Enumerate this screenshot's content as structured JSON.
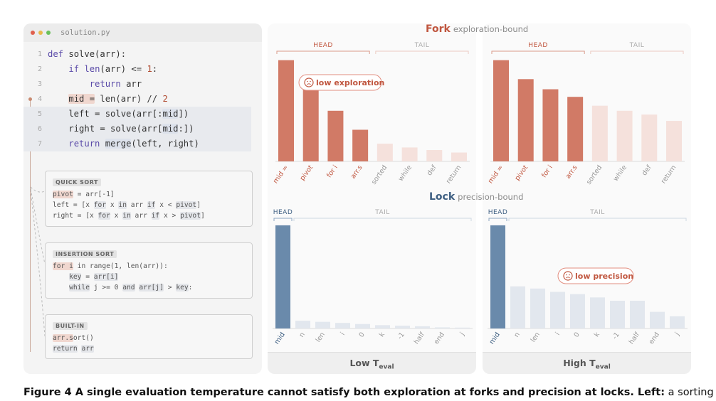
{
  "editor": {
    "filename": "solution.py",
    "dots": [
      "#e0604e",
      "#e8b94a",
      "#6ac05a"
    ],
    "lines": [
      {
        "n": "1",
        "text": "def solve(arr):"
      },
      {
        "n": "2",
        "text": "    if len(arr) <= 1:"
      },
      {
        "n": "3",
        "text": "        return arr"
      },
      {
        "n": "4",
        "text": "    mid = len(arr) // 2"
      },
      {
        "n": "5",
        "text": "    left = solve(arr[:mid])"
      },
      {
        "n": "6",
        "text": "    right = solve(arr[mid:])"
      },
      {
        "n": "7",
        "text": "    return merge(left, right)"
      }
    ]
  },
  "strategies": [
    {
      "title": "QUICK SORT",
      "lines": [
        "pivot = arr[-1]",
        "left = [x for x in arr if x < pivot]",
        "right = [x for x in arr if x > pivot]"
      ]
    },
    {
      "title": "INSERTION SORT",
      "lines": [
        "for i in range(1, len(arr)):",
        "    key = arr[i]",
        "    while j >= 0 and arr[j] > key:"
      ]
    },
    {
      "title": "BUILT-IN",
      "lines": [
        "arr.sort()",
        "return arr"
      ]
    }
  ],
  "fork": {
    "title": "Fork",
    "subtitle": "exploration-bound",
    "color": "#c0563f"
  },
  "lock": {
    "title": "Lock",
    "subtitle": "precision-bound",
    "color": "#3e5f82"
  },
  "labels": {
    "head": "HEAD",
    "tail": "TAIL"
  },
  "annotations": {
    "low_exploration": "low exploration",
    "low_precision": "low precision"
  },
  "footers": {
    "low": "Low T",
    "high": "High T",
    "sub": "eval"
  },
  "colors": {
    "fork_head": "#d17a66",
    "fork_tail": "#f5e1dc",
    "lock_head": "#6a8aab",
    "lock_tail": "#e2e7ee"
  },
  "chart_data": [
    {
      "type": "bar",
      "group": "Fork",
      "panel": "Low T_eval",
      "categories": [
        "mid =",
        "pivot",
        "for i",
        "arr.s",
        "sorted",
        "while",
        "def",
        "return"
      ],
      "head_count": 4,
      "values": [
        0.8,
        0.63,
        0.4,
        0.25,
        0.14,
        0.11,
        0.09,
        0.07
      ]
    },
    {
      "type": "bar",
      "group": "Fork",
      "panel": "High T_eval",
      "categories": [
        "mid =",
        "pivot",
        "for i",
        "arr.s",
        "sorted",
        "while",
        "def",
        "return"
      ],
      "head_count": 4,
      "values": [
        0.8,
        0.65,
        0.57,
        0.51,
        0.44,
        0.4,
        0.37,
        0.32
      ]
    },
    {
      "type": "bar",
      "group": "Lock",
      "panel": "Low T_eval",
      "categories": [
        "mid",
        "n",
        "len",
        "i",
        "0",
        "k",
        "-1",
        "half",
        "end",
        "j"
      ],
      "head_count": 1,
      "values": [
        0.93,
        0.07,
        0.06,
        0.05,
        0.04,
        0.03,
        0.025,
        0.02,
        0.01,
        0.008
      ]
    },
    {
      "type": "bar",
      "group": "Lock",
      "panel": "High T_eval",
      "categories": [
        "mid",
        "n",
        "len",
        "i",
        "0",
        "k",
        "-1",
        "half",
        "end",
        "j"
      ],
      "head_count": 1,
      "values": [
        0.93,
        0.38,
        0.36,
        0.33,
        0.31,
        0.28,
        0.25,
        0.25,
        0.15,
        0.11
      ]
    }
  ],
  "caption": {
    "bold": "Figure 4  A single evaluation temperature cannot satisfy both exploration at forks and precision at locks. Left:",
    "normal": " a sorting"
  }
}
